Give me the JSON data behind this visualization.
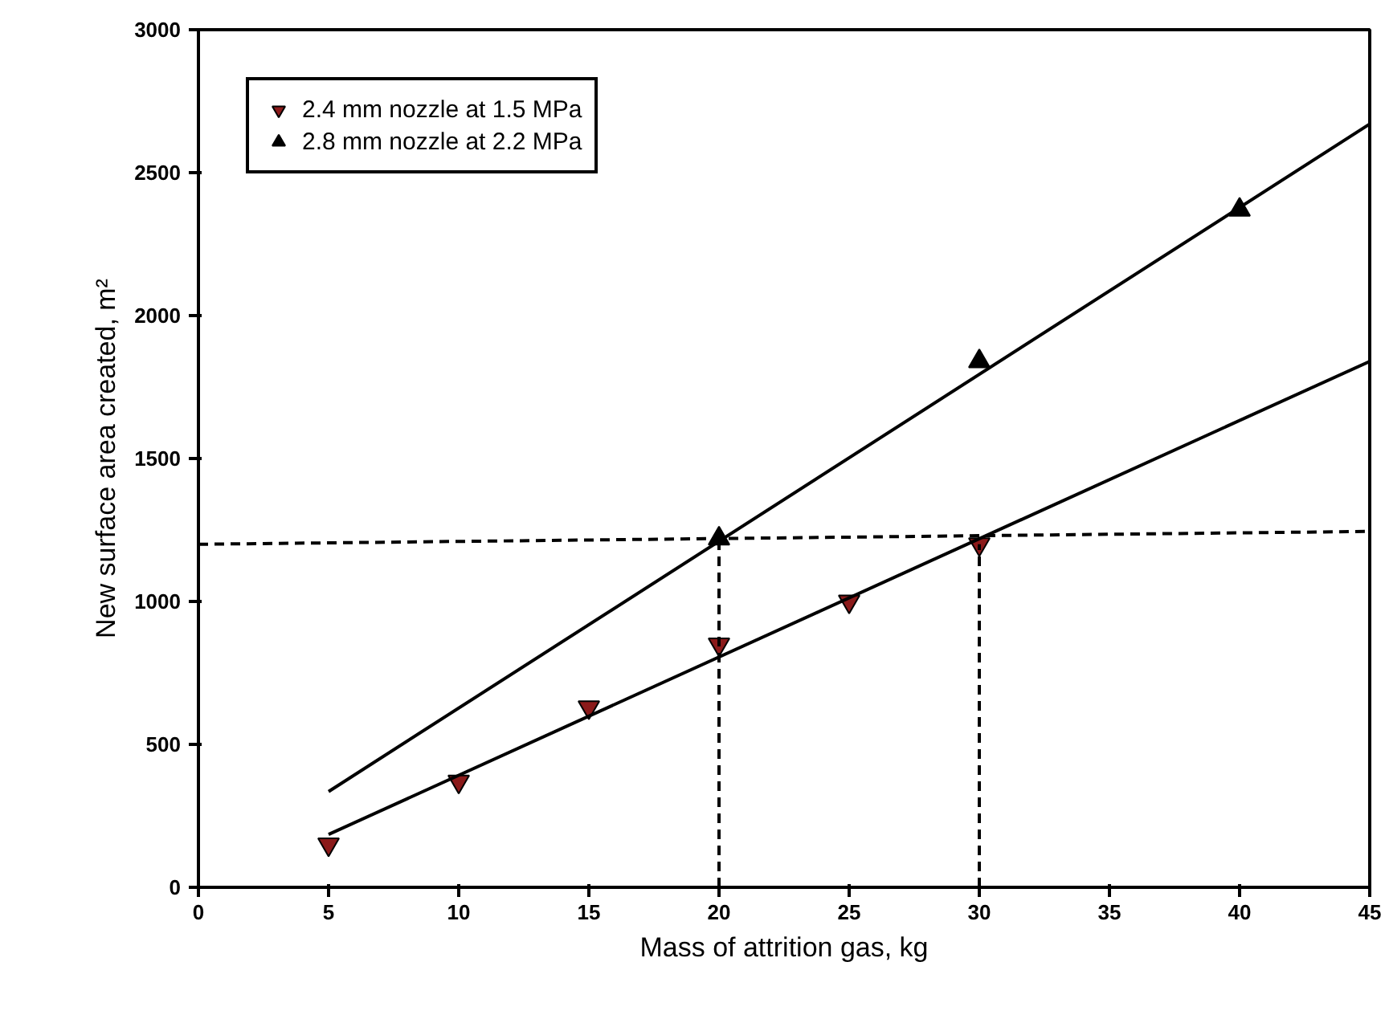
{
  "chart_data": {
    "type": "scatter",
    "xlabel": "Mass of attrition gas, kg",
    "ylabel": "New surface area created, m²",
    "xlim": [
      0,
      45
    ],
    "xticks": [
      0,
      5,
      10,
      15,
      20,
      25,
      30,
      35,
      40,
      45
    ],
    "ylim": [
      0,
      3000
    ],
    "yticks": [
      0,
      500,
      1000,
      1500,
      2000,
      2500,
      3000
    ],
    "grid": false,
    "legend": "top left",
    "series": [
      {
        "name": "2.4 mm nozzle at 1.5 MPa",
        "color": "#8b1a1a",
        "x": [
          5,
          10,
          15,
          20,
          25,
          30
        ],
        "values": [
          150,
          370,
          630,
          850,
          1000,
          1200
        ]
      },
      {
        "name": "2.8 mm nozzle at 2.2 MPa",
        "marker": "triangle",
        "color": "#000000",
        "x": [
          20,
          30,
          40
        ],
        "values": [
          1220,
          1840,
          2370
        ]
      },
      {
        "type": "line",
        "color": "#000000",
        "line_style": "solid",
        "x": [
          5,
          45
        ],
        "values": [
          185,
          1840
        ]
      },
      {
        "type": "line",
        "color": "#000000",
        "line_style": "solid",
        "x": [
          5,
          45
        ],
        "values": [
          335,
          2670
        ]
      },
      {
        "type": "line",
        "color": "#000000",
        "line_style": "dashed",
        "x": [
          20,
          20,
          null,
          30,
          30,
          null,
          0,
          45
        ],
        "values": [
          0,
          1220,
          null,
          0,
          1200,
          null,
          1200,
          1245
        ]
      }
    ]
  }
}
